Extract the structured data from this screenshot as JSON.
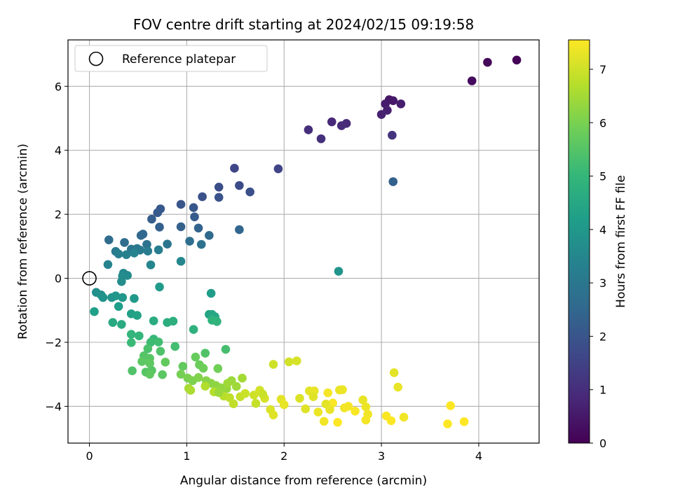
{
  "chart_data": {
    "type": "scatter",
    "title": "FOV centre drift starting at 2024/02/15 09:19:58",
    "xlabel": "Angular distance from reference (arcmin)",
    "ylabel": "Rotation from reference (arcmin)",
    "xlim": [
      -0.22,
      4.62
    ],
    "ylim": [
      -5.15,
      7.45
    ],
    "xticks": [
      0,
      1,
      2,
      3,
      4
    ],
    "yticks": [
      -4,
      -2,
      0,
      2,
      4,
      6
    ],
    "grid": true,
    "legend": {
      "position": "top-left",
      "entries": [
        "Reference platepar"
      ]
    },
    "reference_point": {
      "x": 0,
      "y": 0,
      "label": "Reference platepar"
    },
    "colorbar": {
      "label": "Hours from first FF file",
      "range": [
        0,
        7.55
      ],
      "ticks": [
        0,
        1,
        2,
        3,
        4,
        5,
        6,
        7
      ],
      "colormap": "viridis"
    },
    "colors": {
      "viridis": [
        "#440154",
        "#482878",
        "#3e4989",
        "#31688e",
        "#26828e",
        "#1f9e89",
        "#35b779",
        "#6ece58",
        "#b5de2b",
        "#fde725"
      ]
    },
    "points": [
      {
        "x": 4.39,
        "y": 6.82,
        "c": 0.05
      },
      {
        "x": 4.09,
        "y": 6.75,
        "c": 0.12
      },
      {
        "x": 3.93,
        "y": 6.17,
        "c": 0.2
      },
      {
        "x": 3.08,
        "y": 5.58,
        "c": 0.45
      },
      {
        "x": 3.12,
        "y": 5.55,
        "c": 0.5
      },
      {
        "x": 3.04,
        "y": 5.45,
        "c": 0.55
      },
      {
        "x": 3.2,
        "y": 5.45,
        "c": 0.6
      },
      {
        "x": 3.06,
        "y": 5.25,
        "c": 0.65
      },
      {
        "x": 3.0,
        "y": 5.12,
        "c": 0.7
      },
      {
        "x": 2.49,
        "y": 4.89,
        "c": 0.85
      },
      {
        "x": 2.64,
        "y": 4.84,
        "c": 0.9
      },
      {
        "x": 2.59,
        "y": 4.77,
        "c": 0.95
      },
      {
        "x": 2.25,
        "y": 4.64,
        "c": 1.0
      },
      {
        "x": 2.38,
        "y": 4.36,
        "c": 1.05
      },
      {
        "x": 3.11,
        "y": 4.47,
        "c": 1.15
      },
      {
        "x": 1.49,
        "y": 3.44,
        "c": 1.6
      },
      {
        "x": 1.94,
        "y": 3.42,
        "c": 1.55
      },
      {
        "x": 3.12,
        "y": 3.02,
        "c": 2.3
      },
      {
        "x": 1.54,
        "y": 2.9,
        "c": 1.75
      },
      {
        "x": 1.33,
        "y": 2.85,
        "c": 1.8
      },
      {
        "x": 1.65,
        "y": 2.7,
        "c": 1.85
      },
      {
        "x": 1.16,
        "y": 2.55,
        "c": 1.9
      },
      {
        "x": 1.33,
        "y": 2.53,
        "c": 1.95
      },
      {
        "x": 0.94,
        "y": 2.31,
        "c": 2.0
      },
      {
        "x": 1.07,
        "y": 2.21,
        "c": 2.05
      },
      {
        "x": 0.73,
        "y": 2.17,
        "c": 2.1
      },
      {
        "x": 0.7,
        "y": 2.05,
        "c": 2.15
      },
      {
        "x": 1.08,
        "y": 1.92,
        "c": 2.2
      },
      {
        "x": 0.64,
        "y": 1.85,
        "c": 2.25
      },
      {
        "x": 0.72,
        "y": 1.6,
        "c": 2.3
      },
      {
        "x": 0.94,
        "y": 1.61,
        "c": 2.35
      },
      {
        "x": 1.12,
        "y": 1.57,
        "c": 2.4
      },
      {
        "x": 1.54,
        "y": 1.52,
        "c": 2.45
      },
      {
        "x": 0.55,
        "y": 1.38,
        "c": 2.5
      },
      {
        "x": 0.53,
        "y": 1.34,
        "c": 2.55
      },
      {
        "x": 1.23,
        "y": 1.34,
        "c": 2.6
      },
      {
        "x": 0.2,
        "y": 1.2,
        "c": 2.65
      },
      {
        "x": 0.36,
        "y": 1.12,
        "c": 2.7
      },
      {
        "x": 1.03,
        "y": 1.16,
        "c": 2.75
      },
      {
        "x": 1.15,
        "y": 1.06,
        "c": 2.8
      },
      {
        "x": 0.59,
        "y": 1.06,
        "c": 2.85
      },
      {
        "x": 0.8,
        "y": 1.07,
        "c": 2.9
      },
      {
        "x": 0.43,
        "y": 0.91,
        "c": 2.95
      },
      {
        "x": 0.49,
        "y": 0.93,
        "c": 3.0
      },
      {
        "x": 0.52,
        "y": 0.88,
        "c": 3.05
      },
      {
        "x": 0.27,
        "y": 0.84,
        "c": 3.1
      },
      {
        "x": 0.6,
        "y": 0.85,
        "c": 3.15
      },
      {
        "x": 0.71,
        "y": 0.89,
        "c": 3.2
      },
      {
        "x": 0.3,
        "y": 0.76,
        "c": 3.25
      },
      {
        "x": 0.38,
        "y": 0.74,
        "c": 3.3
      },
      {
        "x": 0.46,
        "y": 0.79,
        "c": 3.35
      },
      {
        "x": 0.19,
        "y": 0.43,
        "c": 3.4
      },
      {
        "x": 0.63,
        "y": 0.42,
        "c": 3.45
      },
      {
        "x": 0.94,
        "y": 0.53,
        "c": 3.5
      },
      {
        "x": 0.35,
        "y": 0.16,
        "c": 3.55
      },
      {
        "x": 0.39,
        "y": 0.09,
        "c": 3.6
      },
      {
        "x": 0.34,
        "y": 0.07,
        "c": 3.65
      },
      {
        "x": 0.33,
        "y": -0.1,
        "c": 3.7
      },
      {
        "x": 2.56,
        "y": 0.22,
        "c": 3.9
      },
      {
        "x": 0.72,
        "y": -0.27,
        "c": 4.1
      },
      {
        "x": 0.07,
        "y": -0.44,
        "c": 3.75
      },
      {
        "x": 0.12,
        "y": -0.52,
        "c": 3.8
      },
      {
        "x": 0.14,
        "y": -0.6,
        "c": 3.85
      },
      {
        "x": 0.23,
        "y": -0.6,
        "c": 3.9
      },
      {
        "x": 0.27,
        "y": -0.55,
        "c": 3.95
      },
      {
        "x": 0.34,
        "y": -0.6,
        "c": 4.0
      },
      {
        "x": 0.46,
        "y": -0.63,
        "c": 4.05
      },
      {
        "x": 1.25,
        "y": -0.47,
        "c": 4.15
      },
      {
        "x": 0.3,
        "y": -0.88,
        "c": 4.2
      },
      {
        "x": 0.05,
        "y": -1.04,
        "c": 4.25
      },
      {
        "x": 0.43,
        "y": -1.11,
        "c": 4.3
      },
      {
        "x": 0.49,
        "y": -1.16,
        "c": 4.35
      },
      {
        "x": 1.23,
        "y": -1.13,
        "c": 4.4
      },
      {
        "x": 1.26,
        "y": -1.13,
        "c": 4.45
      },
      {
        "x": 1.29,
        "y": -1.2,
        "c": 4.5
      },
      {
        "x": 0.24,
        "y": -1.38,
        "c": 4.55
      },
      {
        "x": 0.33,
        "y": -1.44,
        "c": 4.6
      },
      {
        "x": 0.66,
        "y": -1.33,
        "c": 4.65
      },
      {
        "x": 0.8,
        "y": -1.38,
        "c": 4.7
      },
      {
        "x": 0.86,
        "y": -1.34,
        "c": 4.75
      },
      {
        "x": 1.07,
        "y": -1.6,
        "c": 4.8
      },
      {
        "x": 1.26,
        "y": -1.31,
        "c": 4.85
      },
      {
        "x": 1.31,
        "y": -1.35,
        "c": 4.9
      },
      {
        "x": 0.43,
        "y": -1.75,
        "c": 4.95
      },
      {
        "x": 0.51,
        "y": -1.8,
        "c": 5.0
      },
      {
        "x": 0.66,
        "y": -1.9,
        "c": 5.05
      },
      {
        "x": 0.43,
        "y": -2.01,
        "c": 5.1
      },
      {
        "x": 0.63,
        "y": -2.0,
        "c": 5.15
      },
      {
        "x": 0.71,
        "y": -1.99,
        "c": 5.2
      },
      {
        "x": 0.88,
        "y": -2.13,
        "c": 5.25
      },
      {
        "x": 1.4,
        "y": -2.22,
        "c": 5.3
      },
      {
        "x": 0.6,
        "y": -2.2,
        "c": 5.35
      },
      {
        "x": 0.73,
        "y": -2.28,
        "c": 5.4
      },
      {
        "x": 1.19,
        "y": -2.34,
        "c": 5.45
      },
      {
        "x": 0.56,
        "y": -2.42,
        "c": 5.5
      },
      {
        "x": 0.62,
        "y": -2.5,
        "c": 5.55
      },
      {
        "x": 0.54,
        "y": -2.6,
        "c": 5.6
      },
      {
        "x": 0.62,
        "y": -2.66,
        "c": 5.65
      },
      {
        "x": 0.78,
        "y": -2.62,
        "c": 5.7
      },
      {
        "x": 0.44,
        "y": -2.89,
        "c": 5.45
      },
      {
        "x": 0.58,
        "y": -2.93,
        "c": 5.5
      },
      {
        "x": 0.64,
        "y": -2.88,
        "c": 5.55
      },
      {
        "x": 0.75,
        "y": -3.01,
        "c": 5.6
      },
      {
        "x": 0.62,
        "y": -3.0,
        "c": 5.65
      },
      {
        "x": 0.96,
        "y": -2.75,
        "c": 5.7
      },
      {
        "x": 1.09,
        "y": -2.46,
        "c": 5.75
      },
      {
        "x": 1.13,
        "y": -2.7,
        "c": 5.8
      },
      {
        "x": 1.17,
        "y": -2.81,
        "c": 5.85
      },
      {
        "x": 1.32,
        "y": -2.82,
        "c": 5.9
      },
      {
        "x": 0.94,
        "y": -3.0,
        "c": 5.95
      },
      {
        "x": 1.01,
        "y": -3.12,
        "c": 6.0
      },
      {
        "x": 1.06,
        "y": -3.2,
        "c": 6.05
      },
      {
        "x": 1.12,
        "y": -3.1,
        "c": 6.1
      },
      {
        "x": 1.2,
        "y": -3.2,
        "c": 6.15
      },
      {
        "x": 1.25,
        "y": -3.28,
        "c": 6.2
      },
      {
        "x": 1.3,
        "y": -3.35,
        "c": 6.25
      },
      {
        "x": 1.35,
        "y": -3.42,
        "c": 6.3
      },
      {
        "x": 1.41,
        "y": -3.45,
        "c": 6.35
      },
      {
        "x": 1.46,
        "y": -3.2,
        "c": 6.4
      },
      {
        "x": 1.51,
        "y": -3.38,
        "c": 6.45
      },
      {
        "x": 1.57,
        "y": -3.12,
        "c": 6.5
      },
      {
        "x": 1.02,
        "y": -3.44,
        "c": 6.55
      },
      {
        "x": 1.04,
        "y": -3.5,
        "c": 6.6
      },
      {
        "x": 1.19,
        "y": -3.37,
        "c": 6.65
      },
      {
        "x": 1.28,
        "y": -3.55,
        "c": 6.7
      },
      {
        "x": 1.38,
        "y": -3.68,
        "c": 6.75
      },
      {
        "x": 1.44,
        "y": -3.73,
        "c": 6.8
      },
      {
        "x": 1.48,
        "y": -3.92,
        "c": 6.85
      },
      {
        "x": 1.55,
        "y": -3.7,
        "c": 6.9
      },
      {
        "x": 1.6,
        "y": -3.6,
        "c": 6.95
      },
      {
        "x": 1.69,
        "y": -3.65,
        "c": 7.0
      },
      {
        "x": 1.75,
        "y": -3.5,
        "c": 7.05
      },
      {
        "x": 1.8,
        "y": -3.75,
        "c": 7.1
      },
      {
        "x": 1.86,
        "y": -4.1,
        "c": 7.15
      },
      {
        "x": 1.89,
        "y": -4.27,
        "c": 7.2
      },
      {
        "x": 1.97,
        "y": -3.78,
        "c": 7.25
      },
      {
        "x": 2.0,
        "y": -3.95,
        "c": 7.3
      },
      {
        "x": 1.89,
        "y": -2.69,
        "c": 7.0
      },
      {
        "x": 2.05,
        "y": -2.61,
        "c": 7.05
      },
      {
        "x": 2.13,
        "y": -2.58,
        "c": 7.1
      },
      {
        "x": 2.16,
        "y": -3.75,
        "c": 7.15
      },
      {
        "x": 2.22,
        "y": -4.08,
        "c": 7.2
      },
      {
        "x": 2.26,
        "y": -3.52,
        "c": 7.25
      },
      {
        "x": 2.31,
        "y": -3.52,
        "c": 7.3
      },
      {
        "x": 2.35,
        "y": -4.18,
        "c": 7.35
      },
      {
        "x": 2.41,
        "y": -4.47,
        "c": 7.4
      },
      {
        "x": 2.45,
        "y": -3.58,
        "c": 7.45
      },
      {
        "x": 2.5,
        "y": -3.9,
        "c": 7.5
      },
      {
        "x": 2.55,
        "y": -4.5,
        "c": 7.55
      },
      {
        "x": 2.57,
        "y": -3.49,
        "c": 7.3
      },
      {
        "x": 2.6,
        "y": -3.48,
        "c": 7.35
      },
      {
        "x": 2.62,
        "y": -4.05,
        "c": 7.4
      },
      {
        "x": 2.66,
        "y": -4.0,
        "c": 7.45
      },
      {
        "x": 2.73,
        "y": -4.15,
        "c": 7.5
      },
      {
        "x": 2.81,
        "y": -3.8,
        "c": 7.3
      },
      {
        "x": 2.84,
        "y": -4.02,
        "c": 7.35
      },
      {
        "x": 2.86,
        "y": -4.25,
        "c": 7.4
      },
      {
        "x": 2.84,
        "y": -4.43,
        "c": 7.45
      },
      {
        "x": 3.05,
        "y": -4.3,
        "c": 7.5
      },
      {
        "x": 3.1,
        "y": -4.45,
        "c": 7.55
      },
      {
        "x": 3.13,
        "y": -2.95,
        "c": 7.25
      },
      {
        "x": 3.17,
        "y": -3.4,
        "c": 7.3
      },
      {
        "x": 3.23,
        "y": -4.34,
        "c": 7.4
      },
      {
        "x": 3.68,
        "y": -4.55,
        "c": 7.55
      },
      {
        "x": 3.71,
        "y": -3.98,
        "c": 7.55
      },
      {
        "x": 3.85,
        "y": -4.48,
        "c": 7.55
      },
      {
        "x": 2.3,
        "y": -3.7,
        "c": 7.2
      },
      {
        "x": 2.43,
        "y": -3.93,
        "c": 7.25
      },
      {
        "x": 2.47,
        "y": -4.1,
        "c": 7.3
      },
      {
        "x": 1.71,
        "y": -3.91,
        "c": 6.9
      },
      {
        "x": 1.78,
        "y": -3.62,
        "c": 6.95
      },
      {
        "x": 1.33,
        "y": -3.57,
        "c": 6.4
      },
      {
        "x": 1.42,
        "y": -3.28,
        "c": 6.45
      }
    ]
  }
}
